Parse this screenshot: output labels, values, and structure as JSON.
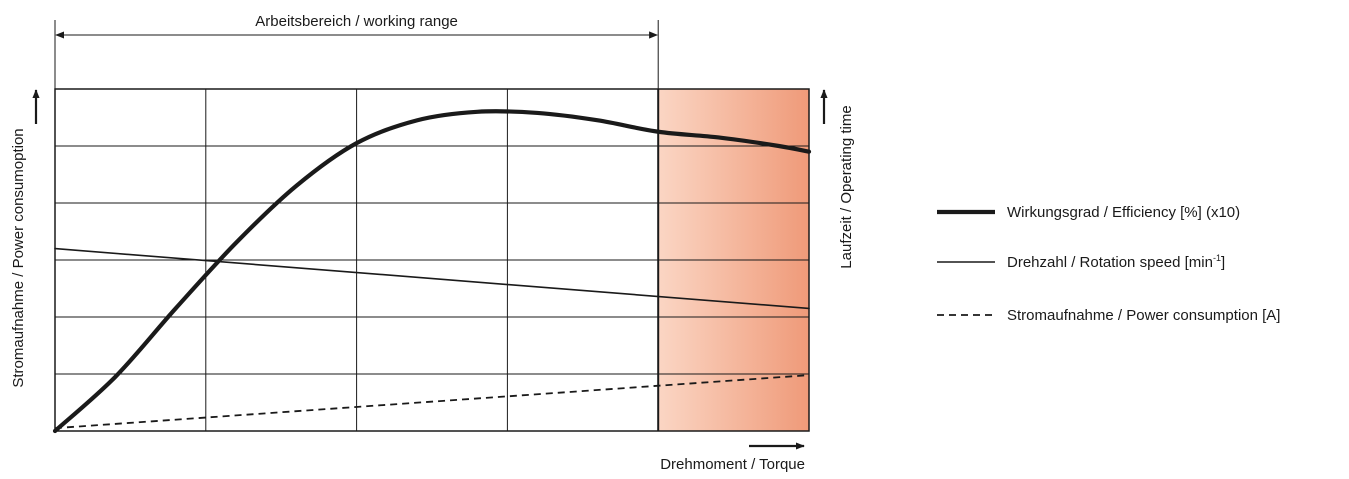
{
  "chart_data": {
    "type": "line",
    "working_range_label": "Arbeitsbereich / working range",
    "xlabel": "Drehmoment  / Torque",
    "ylabel_left": "Stromaufnahme  / Power consumoption",
    "ylabel_right": "Laufzeit / Operating time",
    "xlim": [
      0,
      5
    ],
    "ylim": [
      0,
      6
    ],
    "grid": true,
    "working_range_end": 4,
    "overload_region": [
      4,
      5
    ],
    "overload_gradient_colors": [
      "#fbd6c4",
      "#ef9a79"
    ],
    "legend_position": "right",
    "series": [
      {
        "name": "Wirkungsgrad / Efficiency [%] (x10)",
        "style": "thick",
        "x": [
          0,
          0.4,
          0.8,
          1.2,
          1.6,
          2.0,
          2.4,
          2.8,
          3.2,
          3.6,
          4.0,
          4.4,
          4.8,
          5.0
        ],
        "y": [
          0,
          0.95,
          2.15,
          3.3,
          4.3,
          5.05,
          5.45,
          5.6,
          5.58,
          5.45,
          5.25,
          5.15,
          5.0,
          4.9
        ]
      },
      {
        "name": "Drehzahl / Rotation speed [min",
        "name_sup": "-1",
        "name_end": "]",
        "style": "thin",
        "x": [
          0,
          5
        ],
        "y": [
          3.2,
          2.15
        ]
      },
      {
        "name": "Stromaufnahme / Power consumption [A]",
        "style": "dashed",
        "x": [
          0,
          5
        ],
        "y": [
          0.05,
          0.98
        ]
      }
    ]
  }
}
